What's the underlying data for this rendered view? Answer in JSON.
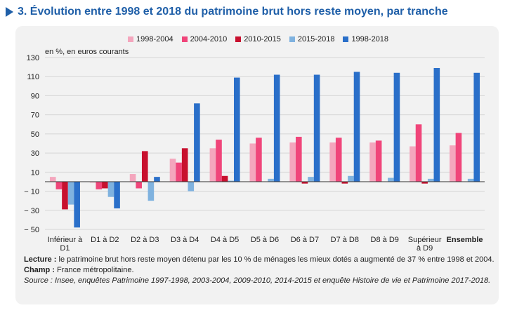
{
  "title": "3. Évolution entre 1998 et 2018 du patrimoine brut hors reste moyen, par tranche",
  "notes": {
    "lecture_label": "Lecture :",
    "lecture_text": " le patrimoine brut hors reste moyen détenu par les 10 % de ménages les mieux dotés a augmenté de 37 % entre 1998 et 2004.",
    "champ_label": "Champ :",
    "champ_text": " France métropolitaine.",
    "source": "Source : Insee, enquêtes Patrimoine 1997-1998, 2003-2004, 2009-2010, 2014-2015 et enquête Histoire de vie et Patrimoine 2017-2018."
  },
  "chart_data": {
    "type": "bar",
    "ylabel": "en %, en euros courants",
    "ylim": [
      -50,
      130
    ],
    "yticks": [
      -50,
      -30,
      -10,
      10,
      30,
      50,
      70,
      90,
      110,
      130
    ],
    "ytick_labels": [
      "− 50",
      "− 30",
      "− 10",
      "10",
      "30",
      "50",
      "70",
      "90",
      "110",
      "130"
    ],
    "grid": true,
    "legend_position": "top",
    "categories": [
      "Inférieur à D1",
      "D1 à D2",
      "D2 à D3",
      "D3 à D4",
      "D4 à D5",
      "D5 à D6",
      "D6 à D7",
      "D7 à D8",
      "D8 à D9",
      "Supérieur à D9",
      "Ensemble"
    ],
    "category_lines": [
      [
        "Inférieur à",
        "D1"
      ],
      [
        "D1 à D2"
      ],
      [
        "D2 à D3"
      ],
      [
        "D3 à D4"
      ],
      [
        "D4 à D5"
      ],
      [
        "D5 à D6"
      ],
      [
        "D6 à D7"
      ],
      [
        "D7 à D8"
      ],
      [
        "D8 à D9"
      ],
      [
        "Supérieur",
        "à D9"
      ],
      [
        "Ensemble"
      ]
    ],
    "bold_categories": [
      "Ensemble"
    ],
    "series": [
      {
        "name": "1998-2004",
        "color": "#f4a6bd",
        "values": [
          5,
          -1,
          8,
          24,
          35,
          40,
          41,
          41,
          41,
          37,
          38
        ]
      },
      {
        "name": "2004-2010",
        "color": "#f0457a",
        "values": [
          -8,
          -8,
          -7,
          20,
          44,
          46,
          47,
          46,
          43,
          60,
          51
        ]
      },
      {
        "name": "2010-2015",
        "color": "#c8102e",
        "values": [
          -29,
          -7,
          32,
          35,
          6,
          0,
          -2,
          -2,
          0,
          -2,
          0
        ]
      },
      {
        "name": "2015-2018",
        "color": "#7fb2df",
        "values": [
          -24,
          -16,
          -20,
          -10,
          1,
          3,
          5,
          6,
          4,
          3,
          3
        ]
      },
      {
        "name": "1998-2018",
        "color": "#2a6fc9",
        "values": [
          -48,
          -28,
          5,
          82,
          109,
          112,
          112,
          115,
          114,
          119,
          114
        ]
      }
    ]
  }
}
